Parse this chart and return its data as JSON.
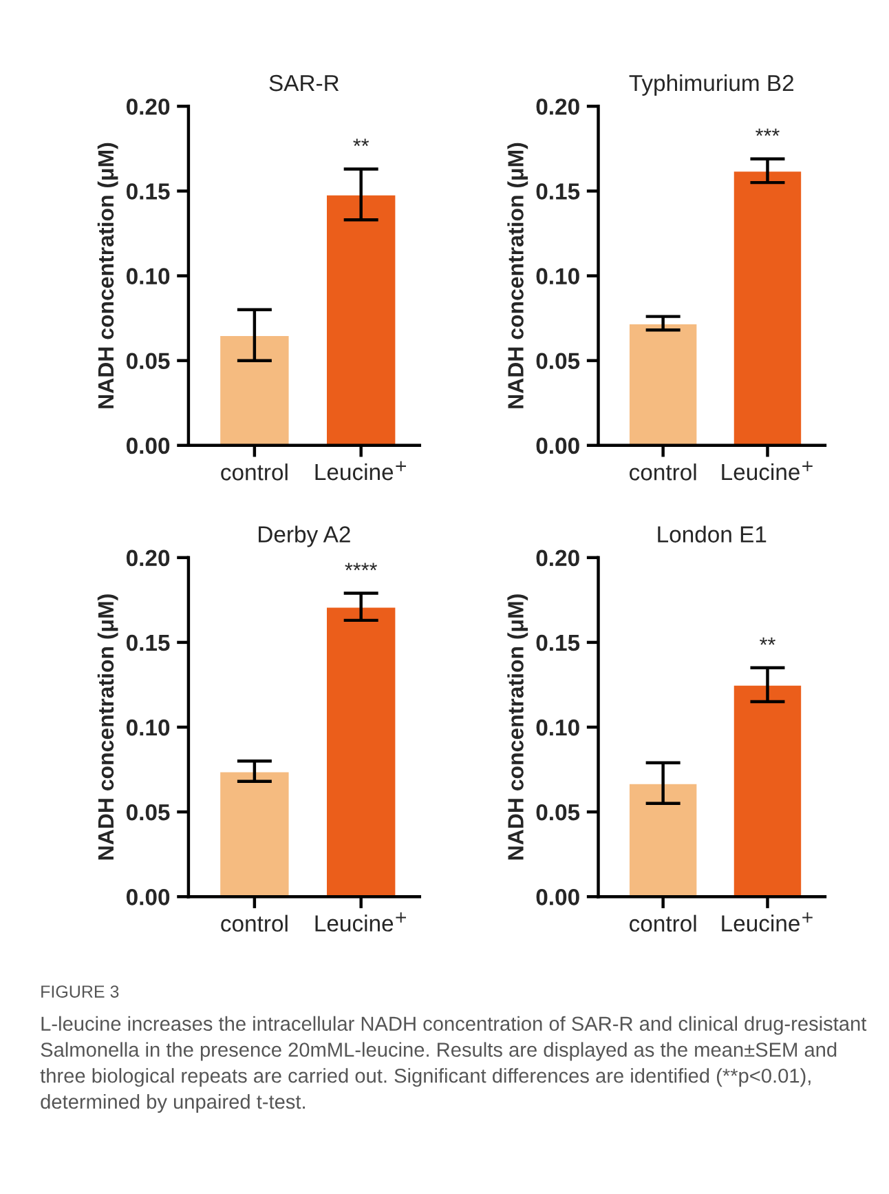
{
  "chart_data": [
    {
      "type": "bar",
      "title": "SAR-R",
      "ylabel": "NADH concentration (μM)",
      "categories": [
        "control",
        "Leucine$^{+}$"
      ],
      "values": [
        0.065,
        0.148
      ],
      "colors": [
        "#f5bb80",
        "#eb5e1b"
      ],
      "errors": [
        0.015,
        0.015
      ],
      "ylim": [
        0,
        0.2
      ],
      "yticks": [
        {
          "value": 0,
          "label": "0.00"
        },
        {
          "value": 0.05,
          "label": "0.05"
        },
        {
          "value": 0.1,
          "label": "0.10"
        },
        {
          "value": 0.15,
          "label": "0.15"
        },
        {
          "value": 0.2,
          "label": "0.20"
        }
      ],
      "annotations": [
        "**"
      ]
    },
    {
      "type": "bar",
      "title": "Typhimurium B2",
      "ylabel": "NADH concentration (μM)",
      "categories": [
        "control",
        "Leucine$^{+}$"
      ],
      "values": [
        0.072,
        0.162
      ],
      "colors": [
        "#f5bb80",
        "#eb5e1b"
      ],
      "errors": [
        0.004,
        0.007
      ],
      "ylim": [
        0,
        0.2
      ],
      "yticks": [
        {
          "value": 0,
          "label": "0.00"
        },
        {
          "value": 0.05,
          "label": "0.05"
        },
        {
          "value": 0.1,
          "label": "0.10"
        },
        {
          "value": 0.15,
          "label": "0.15"
        },
        {
          "value": 0.2,
          "label": "0.20"
        }
      ],
      "annotations": [
        "***"
      ]
    },
    {
      "type": "bar",
      "title": "Derby A2",
      "ylabel": "NADH concentration (μM)",
      "categories": [
        "control",
        "Leucine$^{+}$"
      ],
      "values": [
        0.074,
        0.171
      ],
      "colors": [
        "#f5bb80",
        "#eb5e1b"
      ],
      "errors": [
        0.006,
        0.008
      ],
      "ylim": [
        0,
        0.2
      ],
      "yticks": [
        {
          "value": 0,
          "label": "0.00"
        },
        {
          "value": 0.05,
          "label": "0.05"
        },
        {
          "value": 0.1,
          "label": "0.10"
        },
        {
          "value": 0.15,
          "label": "0.15"
        },
        {
          "value": 0.2,
          "label": "0.20"
        }
      ],
      "annotations": [
        "****"
      ]
    },
    {
      "type": "bar",
      "title": "London E1",
      "ylabel": "NADH concentration (μM)",
      "categories": [
        "control",
        "Leucine$^{+}$"
      ],
      "values": [
        0.067,
        0.125
      ],
      "colors": [
        "#f5bb80",
        "#eb5e1b"
      ],
      "errors": [
        0.012,
        0.01
      ],
      "ylim": [
        0,
        0.2
      ],
      "yticks": [
        {
          "value": 0,
          "label": "0.00"
        },
        {
          "value": 0.05,
          "label": "0.05"
        },
        {
          "value": 0.1,
          "label": "0.10"
        },
        {
          "value": 0.15,
          "label": "0.15"
        },
        {
          "value": 0.2,
          "label": "0.20"
        }
      ],
      "annotations": [
        "**"
      ]
    },
    {
      "type": "other",
      "annotations": [
        "FIGURE 3",
        "L-leucine increases the intracellular NADH concentration of SAR-R and clinical drug-resistant Salmonella in the presence 20mML-leucine. Results are displayed as the mean±SEM and three biological repeats are carried out. Significant differences are identified (**p<0.01), determined by unpaired t-test."
      ]
    }
  ]
}
